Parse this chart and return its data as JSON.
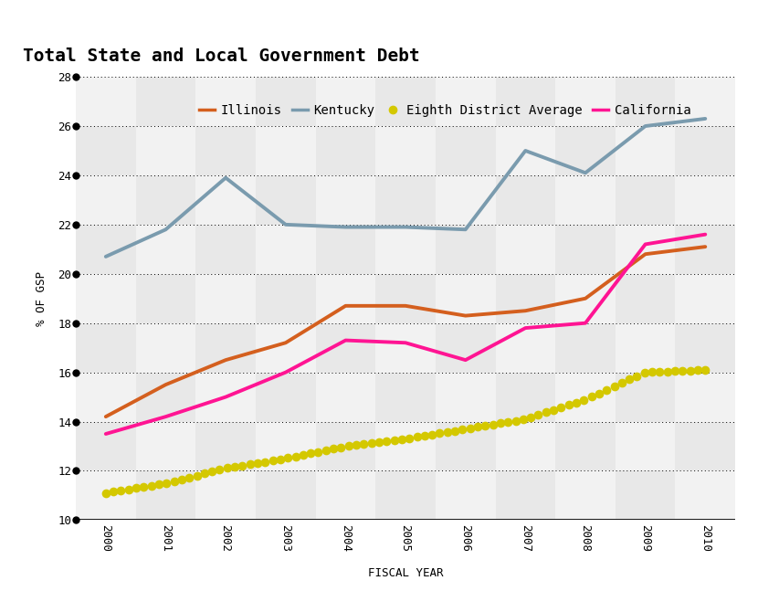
{
  "title": "Total State and Local Government Debt",
  "xlabel": "FISCAL YEAR",
  "ylabel": "% OF GSP",
  "years": [
    2000,
    2001,
    2002,
    2003,
    2004,
    2005,
    2006,
    2007,
    2008,
    2009,
    2010
  ],
  "illinois": [
    14.2,
    15.5,
    16.5,
    17.2,
    18.7,
    18.7,
    18.3,
    18.5,
    19.0,
    20.8,
    21.1
  ],
  "kentucky": [
    20.7,
    21.8,
    23.9,
    22.0,
    21.9,
    21.9,
    21.8,
    25.0,
    24.1,
    26.0,
    26.3
  ],
  "eighth_district": [
    11.1,
    11.5,
    12.1,
    12.5,
    13.0,
    13.3,
    13.7,
    14.1,
    14.9,
    16.0,
    16.1
  ],
  "california": [
    13.5,
    14.2,
    15.0,
    16.0,
    17.3,
    17.2,
    16.5,
    17.8,
    18.0,
    21.2,
    21.6
  ],
  "illinois_color": "#D45F1E",
  "kentucky_color": "#7A9BAE",
  "eighth_color": "#D4C800",
  "california_color": "#FF1493",
  "ylim": [
    10,
    28
  ],
  "yticks": [
    10,
    12,
    14,
    16,
    18,
    20,
    22,
    24,
    26,
    28
  ],
  "tile_light": "#E8E8E8",
  "tile_dark": "#F2F2F2",
  "title_fontsize": 14,
  "axis_fontsize": 9,
  "legend_fontsize": 10,
  "label_fontsize": 9
}
